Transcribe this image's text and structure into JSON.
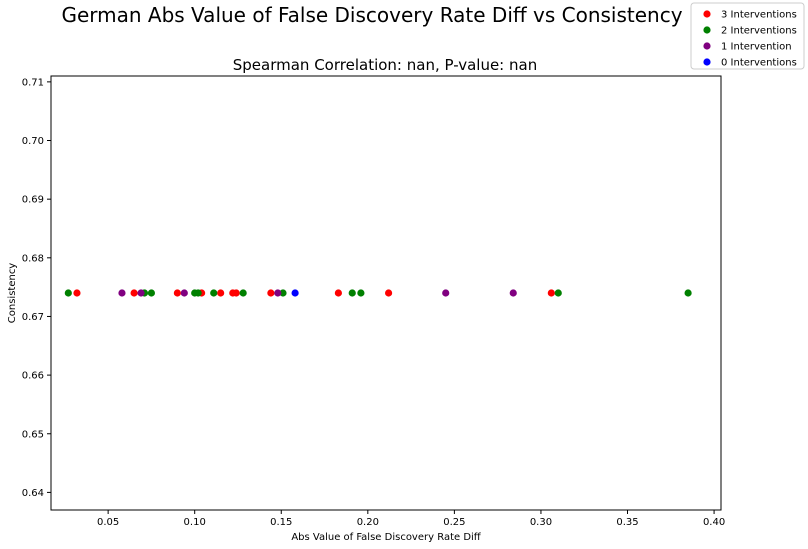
{
  "chart_data": {
    "type": "scatter",
    "title": "German Abs Value of False Discovery Rate Diff vs Consistency",
    "subtitle": "Spearman Correlation: nan, P-value: nan",
    "xlabel": "Abs Value of False Discovery Rate Diff",
    "ylabel": "Consistency",
    "xlim": [
      0.017,
      0.404
    ],
    "ylim": [
      0.637,
      0.711
    ],
    "xticks": [
      0.05,
      0.1,
      0.15,
      0.2,
      0.25,
      0.3,
      0.35,
      0.4
    ],
    "xtick_labels": [
      "0.05",
      "0.10",
      "0.15",
      "0.20",
      "0.25",
      "0.30",
      "0.35",
      "0.40"
    ],
    "yticks": [
      0.64,
      0.65,
      0.66,
      0.67,
      0.68,
      0.69,
      0.7,
      0.71
    ],
    "ytick_labels": [
      "0.64",
      "0.65",
      "0.66",
      "0.67",
      "0.68",
      "0.69",
      "0.70",
      "0.71"
    ],
    "grid": false,
    "legend_position": "top-right",
    "series": [
      {
        "name": "3 Interventions",
        "color": "#ff0000",
        "points": [
          {
            "x": 0.032,
            "y": 0.674
          },
          {
            "x": 0.065,
            "y": 0.674
          },
          {
            "x": 0.09,
            "y": 0.674
          },
          {
            "x": 0.104,
            "y": 0.674
          },
          {
            "x": 0.115,
            "y": 0.674
          },
          {
            "x": 0.122,
            "y": 0.674
          },
          {
            "x": 0.124,
            "y": 0.674
          },
          {
            "x": 0.144,
            "y": 0.674
          },
          {
            "x": 0.183,
            "y": 0.674
          },
          {
            "x": 0.212,
            "y": 0.674
          },
          {
            "x": 0.306,
            "y": 0.674
          }
        ]
      },
      {
        "name": "2 Interventions",
        "color": "#008000",
        "points": [
          {
            "x": 0.027,
            "y": 0.674
          },
          {
            "x": 0.071,
            "y": 0.674
          },
          {
            "x": 0.075,
            "y": 0.674
          },
          {
            "x": 0.1,
            "y": 0.674
          },
          {
            "x": 0.102,
            "y": 0.674
          },
          {
            "x": 0.111,
            "y": 0.674
          },
          {
            "x": 0.128,
            "y": 0.674
          },
          {
            "x": 0.151,
            "y": 0.674
          },
          {
            "x": 0.191,
            "y": 0.674
          },
          {
            "x": 0.196,
            "y": 0.674
          },
          {
            "x": 0.31,
            "y": 0.674
          },
          {
            "x": 0.385,
            "y": 0.674
          }
        ]
      },
      {
        "name": "1 Intervention",
        "color": "#800080",
        "points": [
          {
            "x": 0.058,
            "y": 0.674
          },
          {
            "x": 0.069,
            "y": 0.674
          },
          {
            "x": 0.094,
            "y": 0.674
          },
          {
            "x": 0.148,
            "y": 0.674
          },
          {
            "x": 0.245,
            "y": 0.674
          },
          {
            "x": 0.284,
            "y": 0.674
          }
        ]
      },
      {
        "name": "0 Interventions",
        "color": "#0000ff",
        "points": [
          {
            "x": 0.158,
            "y": 0.674
          }
        ]
      }
    ]
  }
}
